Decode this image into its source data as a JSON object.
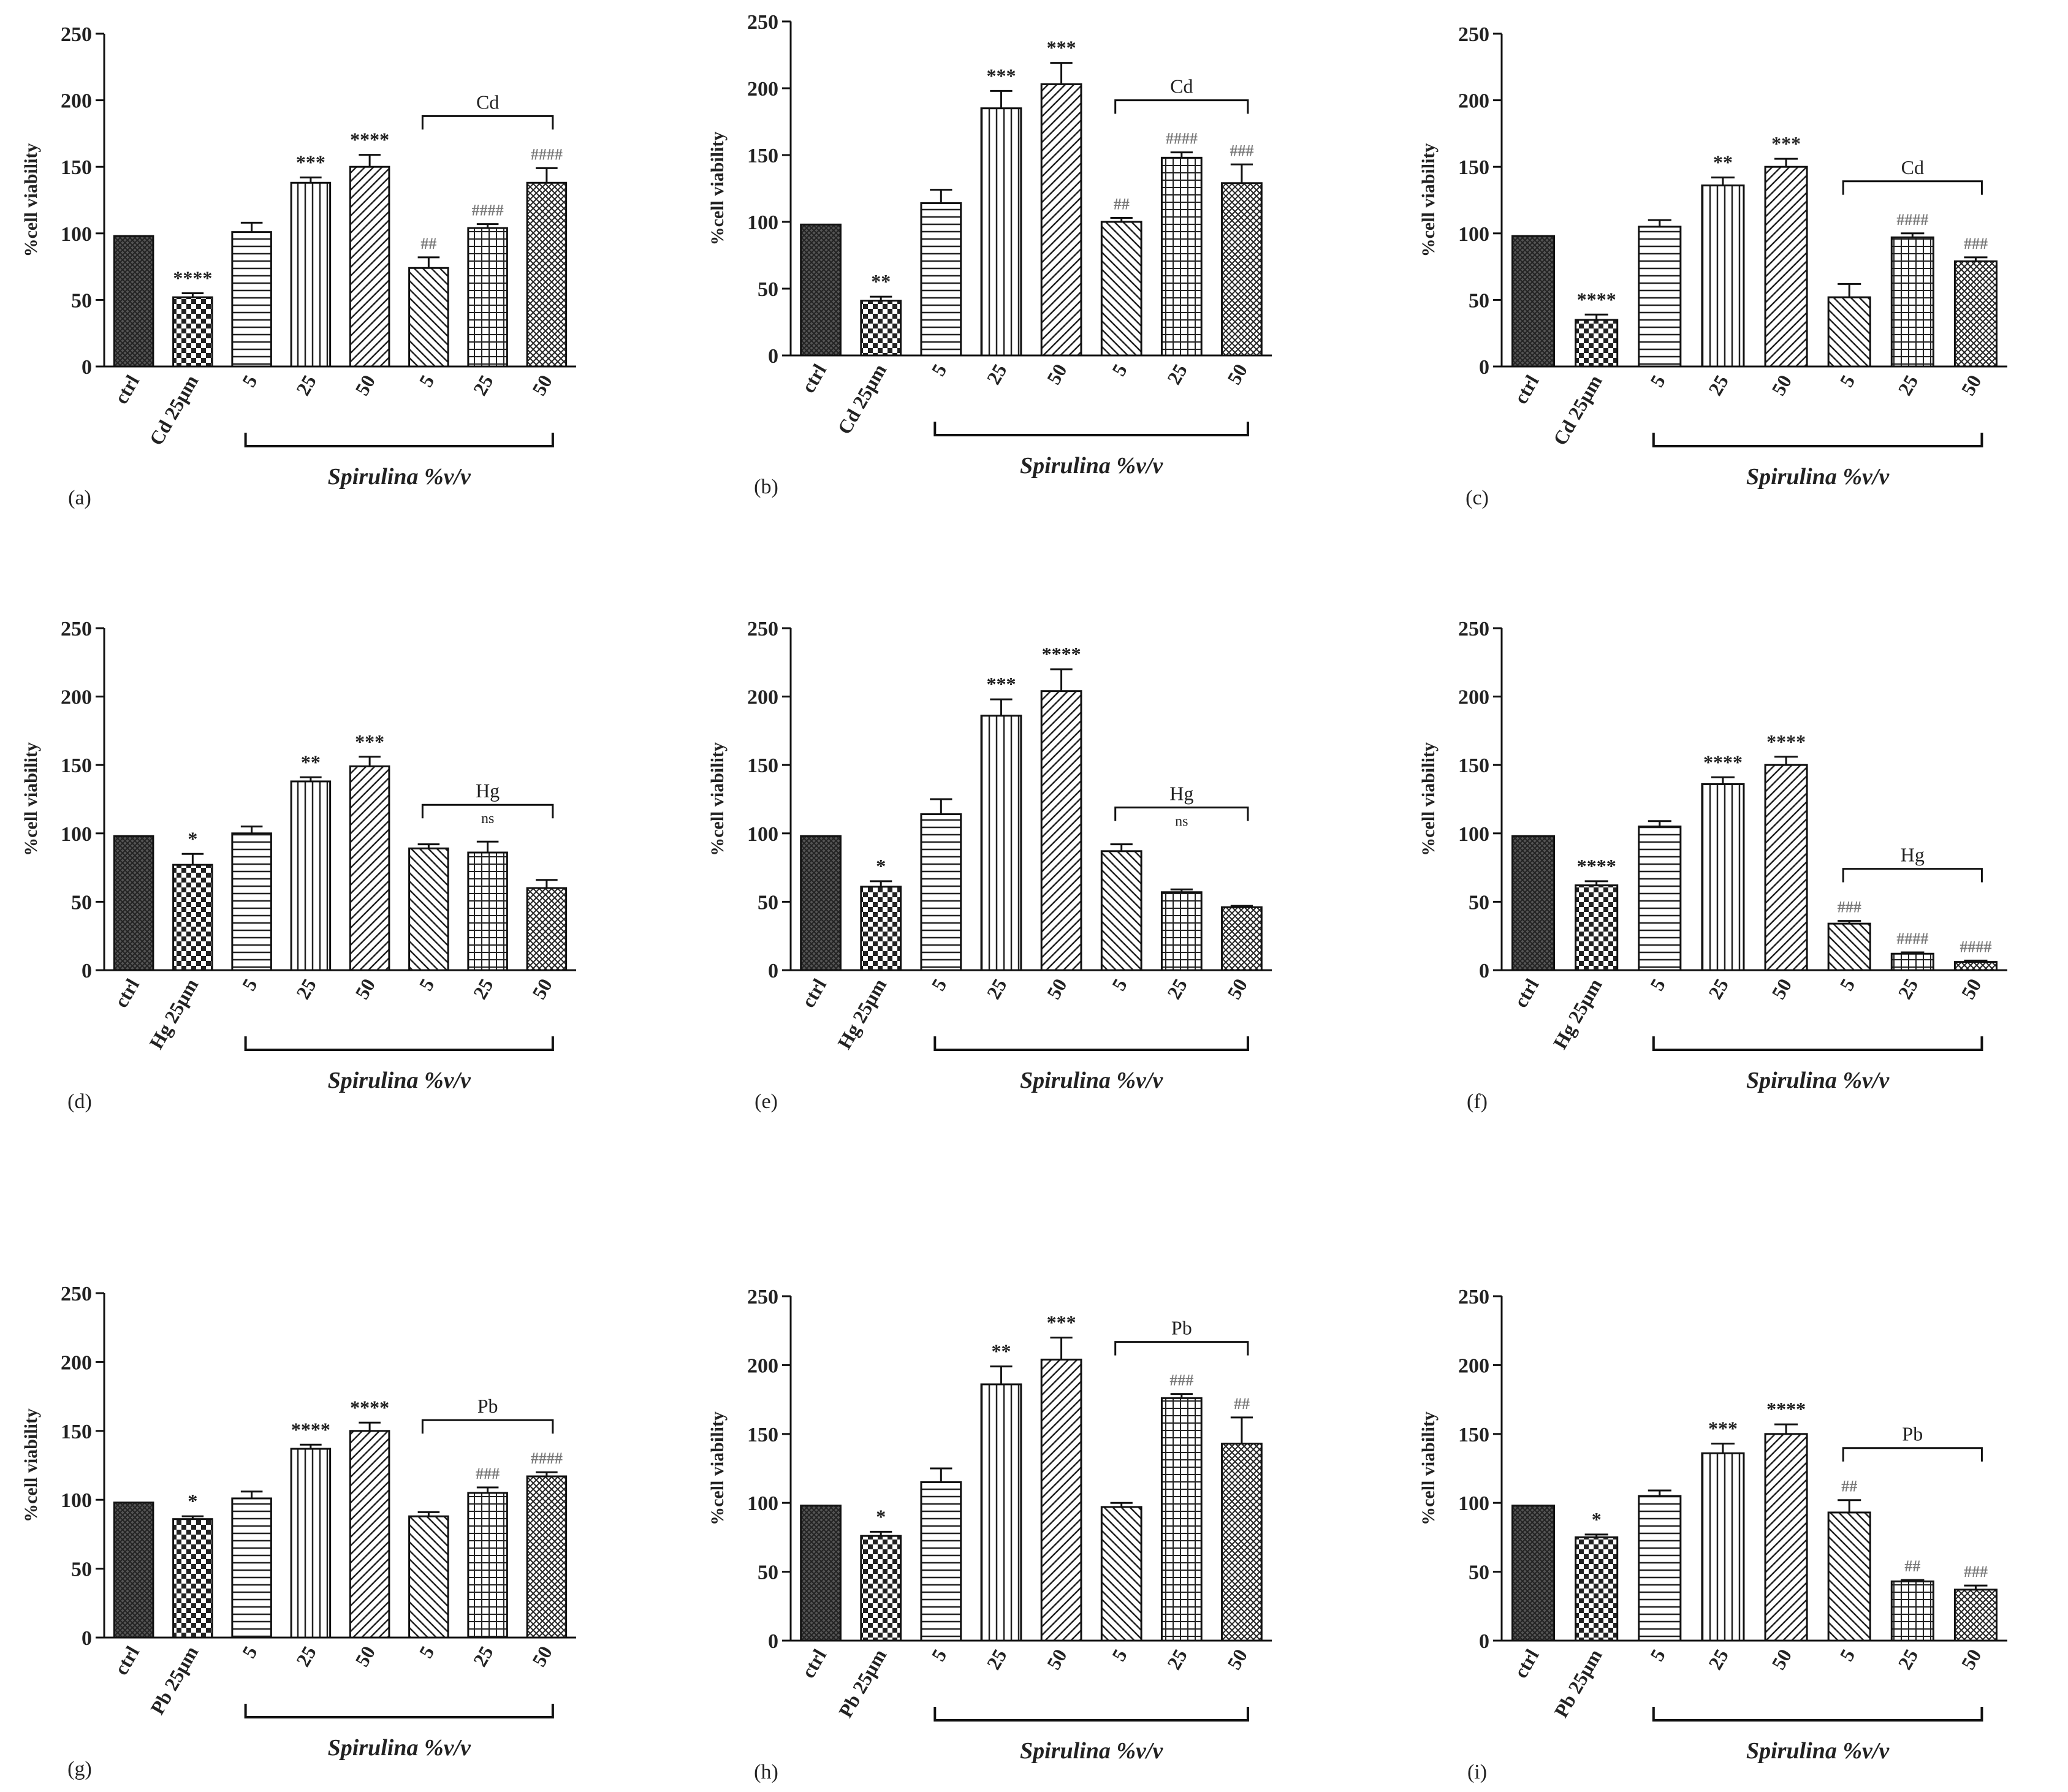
{
  "figure": {
    "ylabel": "%cell viability",
    "xtitle": "Spirulina %v/v",
    "colors": {
      "ink": "#222222",
      "bar_fill": "#ffffff",
      "hash_gray": "#777777",
      "error": "#111111"
    }
  },
  "chart_data": [
    {
      "id": "a",
      "type": "bar",
      "panel_label": "(a)",
      "metal": "Cd",
      "categories": [
        "ctrl",
        "Cd 25µm",
        "5",
        "25",
        "50",
        "5",
        "25",
        "50"
      ],
      "values": [
        98,
        52,
        101,
        138,
        150,
        74,
        104,
        138
      ],
      "errors": [
        0,
        3,
        7,
        4,
        9,
        8,
        3,
        11
      ],
      "significance": [
        "",
        "****",
        "",
        "***",
        "****",
        "##",
        "####",
        "####"
      ],
      "bracket_label": "Cd",
      "bracket_sub": "",
      "ylim": [
        0,
        250
      ],
      "yticks": [
        0,
        50,
        100,
        150,
        200,
        250
      ]
    },
    {
      "id": "b",
      "type": "bar",
      "panel_label": "(b)",
      "metal": "Cd",
      "categories": [
        "ctrl",
        "Cd 25µm",
        "5",
        "25",
        "50",
        "5",
        "25",
        "50"
      ],
      "values": [
        98,
        41,
        114,
        185,
        203,
        100,
        148,
        129
      ],
      "errors": [
        0,
        3,
        10,
        13,
        16,
        3,
        4,
        14
      ],
      "significance": [
        "",
        "**",
        "",
        "***",
        "***",
        "##",
        "####",
        "###"
      ],
      "bracket_label": "Cd",
      "bracket_sub": "",
      "ylim": [
        0,
        250
      ],
      "yticks": [
        0,
        50,
        100,
        150,
        200,
        250
      ]
    },
    {
      "id": "c",
      "type": "bar",
      "panel_label": "(c)",
      "metal": "Cd",
      "categories": [
        "ctrl",
        "Cd 25µm",
        "5",
        "25",
        "50",
        "5",
        "25",
        "50"
      ],
      "values": [
        98,
        35,
        105,
        136,
        150,
        52,
        97,
        79
      ],
      "errors": [
        0,
        4,
        5,
        6,
        6,
        10,
        3,
        3
      ],
      "significance": [
        "",
        "****",
        "",
        "**",
        "***",
        "",
        "####",
        "###"
      ],
      "bracket_label": "Cd",
      "bracket_sub": "",
      "ylim": [
        0,
        250
      ],
      "yticks": [
        0,
        50,
        100,
        150,
        200,
        250
      ]
    },
    {
      "id": "d",
      "type": "bar",
      "panel_label": "(d)",
      "metal": "Hg",
      "categories": [
        "ctrl",
        "Hg 25µm",
        "5",
        "25",
        "50",
        "5",
        "25",
        "50"
      ],
      "values": [
        98,
        77,
        100,
        138,
        149,
        89,
        86,
        60
      ],
      "errors": [
        0,
        8,
        5,
        3,
        7,
        3,
        8,
        6
      ],
      "significance": [
        "",
        "*",
        "",
        "**",
        "***",
        "",
        "",
        ""
      ],
      "bracket_label": "Hg",
      "bracket_sub": "ns",
      "ylim": [
        0,
        250
      ],
      "yticks": [
        0,
        50,
        100,
        150,
        200,
        250
      ]
    },
    {
      "id": "e",
      "type": "bar",
      "panel_label": "(e)",
      "metal": "Hg",
      "categories": [
        "ctrl",
        "Hg 25µm",
        "5",
        "25",
        "50",
        "5",
        "25",
        "50"
      ],
      "values": [
        98,
        61,
        114,
        186,
        204,
        87,
        57,
        46
      ],
      "errors": [
        0,
        4,
        11,
        12,
        16,
        5,
        2,
        1
      ],
      "significance": [
        "",
        "*",
        "",
        "***",
        "****",
        "",
        "",
        ""
      ],
      "bracket_label": "Hg",
      "bracket_sub": "ns",
      "ylim": [
        0,
        250
      ],
      "yticks": [
        0,
        50,
        100,
        150,
        200,
        250
      ]
    },
    {
      "id": "f",
      "type": "bar",
      "panel_label": "(f)",
      "metal": "Hg",
      "categories": [
        "ctrl",
        "Hg 25µm",
        "5",
        "25",
        "50",
        "5",
        "25",
        "50"
      ],
      "values": [
        98,
        62,
        105,
        136,
        150,
        34,
        12,
        6
      ],
      "errors": [
        0,
        3,
        4,
        5,
        6,
        2,
        1,
        1
      ],
      "significance": [
        "",
        "****",
        "",
        "****",
        "****",
        "###",
        "####",
        "####"
      ],
      "bracket_label": "Hg",
      "bracket_sub": "",
      "ylim": [
        0,
        250
      ],
      "yticks": [
        0,
        50,
        100,
        150,
        200,
        250
      ]
    },
    {
      "id": "g",
      "type": "bar",
      "panel_label": "(g)",
      "metal": "Pb",
      "categories": [
        "ctrl",
        "Pb 25µm",
        "5",
        "25",
        "50",
        "5",
        "25",
        "50"
      ],
      "values": [
        98,
        86,
        101,
        137,
        150,
        88,
        105,
        117
      ],
      "errors": [
        0,
        2,
        5,
        3,
        6,
        3,
        4,
        3
      ],
      "significance": [
        "",
        "*",
        "",
        "****",
        "****",
        "",
        "###",
        "####"
      ],
      "bracket_label": "Pb",
      "bracket_sub": "",
      "ylim": [
        0,
        250
      ],
      "yticks": [
        0,
        50,
        100,
        150,
        200,
        250
      ]
    },
    {
      "id": "h",
      "type": "bar",
      "panel_label": "(h)",
      "metal": "Pb",
      "categories": [
        "ctrl",
        "Pb 25µm",
        "5",
        "25",
        "50",
        "5",
        "25",
        "50"
      ],
      "values": [
        98,
        76,
        115,
        186,
        204,
        97,
        176,
        143
      ],
      "errors": [
        0,
        3,
        10,
        13,
        16,
        3,
        3,
        19
      ],
      "significance": [
        "",
        "*",
        "",
        "**",
        "***",
        "",
        "###",
        "##"
      ],
      "bracket_label": "Pb",
      "bracket_sub": "",
      "ylim": [
        0,
        250
      ],
      "yticks": [
        0,
        50,
        100,
        150,
        200,
        250
      ]
    },
    {
      "id": "i",
      "type": "bar",
      "panel_label": "(i)",
      "metal": "Pb",
      "categories": [
        "ctrl",
        "Pb 25µm",
        "5",
        "25",
        "50",
        "5",
        "25",
        "50"
      ],
      "values": [
        98,
        75,
        105,
        136,
        150,
        93,
        43,
        37
      ],
      "errors": [
        0,
        2,
        4,
        7,
        7,
        9,
        1,
        3
      ],
      "significance": [
        "",
        "*",
        "",
        "***",
        "****",
        "##",
        "##",
        "###"
      ],
      "bracket_label": "Pb",
      "bracket_sub": "",
      "ylim": [
        0,
        250
      ],
      "yticks": [
        0,
        50,
        100,
        150,
        200,
        250
      ]
    }
  ]
}
